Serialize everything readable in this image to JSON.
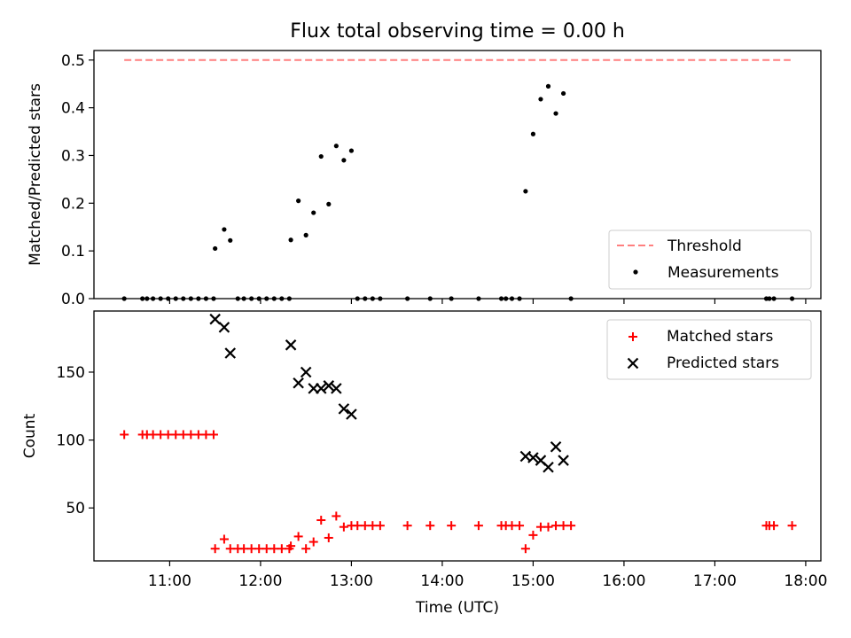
{
  "chart_data": [
    {
      "type": "scatter",
      "title": "Flux total observing time = 0.00 h",
      "xlabel": "",
      "ylabel": "Matched/Predicted stars",
      "xlim": [
        "10:10",
        "18:10"
      ],
      "ylim": [
        0,
        0.52
      ],
      "x_ticks": [
        "11:00",
        "12:00",
        "13:00",
        "14:00",
        "15:00",
        "16:00",
        "17:00",
        "18:00"
      ],
      "y_ticks": [
        "0.0",
        "0.1",
        "0.2",
        "0.3",
        "0.4",
        "0.5"
      ],
      "y_tick_values": [
        0,
        0.1,
        0.2,
        0.3,
        0.4,
        0.5
      ],
      "legend_position": "lower-right",
      "threshold": {
        "name": "Threshold",
        "value": 0.5,
        "x_start": "10:30",
        "x_end": "17:50",
        "color": "#ff7f7f",
        "style": "dashed"
      },
      "series": [
        {
          "name": "Measurements",
          "color": "#000000",
          "marker": "dot",
          "points": [
            [
              "10:30",
              0.0
            ],
            [
              "10:42",
              0.0
            ],
            [
              "10:45",
              0.0
            ],
            [
              "10:49",
              0.0
            ],
            [
              "10:54",
              0.0
            ],
            [
              "10:59",
              0.0
            ],
            [
              "11:04",
              0.0
            ],
            [
              "11:09",
              0.0
            ],
            [
              "11:14",
              0.0
            ],
            [
              "11:19",
              0.0
            ],
            [
              "11:24",
              0.0
            ],
            [
              "11:29",
              0.0
            ],
            [
              "11:30",
              0.105
            ],
            [
              "11:36",
              0.145
            ],
            [
              "11:40",
              0.122
            ],
            [
              "11:45",
              0.0
            ],
            [
              "11:49",
              0.0
            ],
            [
              "11:54",
              0.0
            ],
            [
              "11:59",
              0.0
            ],
            [
              "12:04",
              0.0
            ],
            [
              "12:09",
              0.0
            ],
            [
              "12:14",
              0.0
            ],
            [
              "12:19",
              0.0
            ],
            [
              "12:20",
              0.123
            ],
            [
              "12:25",
              0.205
            ],
            [
              "12:30",
              0.133
            ],
            [
              "12:35",
              0.18
            ],
            [
              "12:40",
              0.298
            ],
            [
              "12:45",
              0.198
            ],
            [
              "12:50",
              0.32
            ],
            [
              "12:55",
              0.29
            ],
            [
              "13:00",
              0.31
            ],
            [
              "13:04",
              0.0
            ],
            [
              "13:09",
              0.0
            ],
            [
              "13:14",
              0.0
            ],
            [
              "13:19",
              0.0
            ],
            [
              "13:37",
              0.0
            ],
            [
              "13:52",
              0.0
            ],
            [
              "14:06",
              0.0
            ],
            [
              "14:24",
              0.0
            ],
            [
              "14:39",
              0.0
            ],
            [
              "14:42",
              0.0
            ],
            [
              "14:46",
              0.0
            ],
            [
              "14:51",
              0.0
            ],
            [
              "14:55",
              0.225
            ],
            [
              "15:00",
              0.345
            ],
            [
              "15:05",
              0.418
            ],
            [
              "15:10",
              0.445
            ],
            [
              "15:15",
              0.388
            ],
            [
              "15:20",
              0.43
            ],
            [
              "15:25",
              0.0
            ],
            [
              "17:34",
              0.0
            ],
            [
              "17:36",
              0.0
            ],
            [
              "17:39",
              0.0
            ],
            [
              "17:51",
              0.0
            ]
          ]
        }
      ]
    },
    {
      "type": "scatter",
      "title": "",
      "xlabel": "Time (UTC)",
      "ylabel": "Count",
      "xlim": [
        "10:10",
        "18:10"
      ],
      "ylim": [
        11,
        195
      ],
      "x_ticks": [
        "11:00",
        "12:00",
        "13:00",
        "14:00",
        "15:00",
        "16:00",
        "17:00",
        "18:00"
      ],
      "y_ticks": [
        "50",
        "100",
        "150"
      ],
      "y_tick_values": [
        50,
        100,
        150
      ],
      "legend_position": "upper-right",
      "series": [
        {
          "name": "Matched stars",
          "color": "#ff0000",
          "marker": "plus",
          "points": [
            [
              "10:30",
              104
            ],
            [
              "10:42",
              104
            ],
            [
              "10:45",
              104
            ],
            [
              "10:49",
              104
            ],
            [
              "10:54",
              104
            ],
            [
              "10:59",
              104
            ],
            [
              "11:04",
              104
            ],
            [
              "11:09",
              104
            ],
            [
              "11:14",
              104
            ],
            [
              "11:19",
              104
            ],
            [
              "11:24",
              104
            ],
            [
              "11:29",
              104
            ],
            [
              "11:30",
              20
            ],
            [
              "11:36",
              27
            ],
            [
              "11:40",
              20
            ],
            [
              "11:45",
              20
            ],
            [
              "11:49",
              20
            ],
            [
              "11:54",
              20
            ],
            [
              "11:59",
              20
            ],
            [
              "12:04",
              20
            ],
            [
              "12:09",
              20
            ],
            [
              "12:14",
              20
            ],
            [
              "12:19",
              20
            ],
            [
              "12:20",
              22
            ],
            [
              "12:25",
              29
            ],
            [
              "12:30",
              20
            ],
            [
              "12:35",
              25
            ],
            [
              "12:40",
              41
            ],
            [
              "12:45",
              28
            ],
            [
              "12:50",
              44
            ],
            [
              "12:55",
              36
            ],
            [
              "13:00",
              37
            ],
            [
              "13:04",
              37
            ],
            [
              "13:09",
              37
            ],
            [
              "13:14",
              37
            ],
            [
              "13:19",
              37
            ],
            [
              "13:37",
              37
            ],
            [
              "13:52",
              37
            ],
            [
              "14:06",
              37
            ],
            [
              "14:24",
              37
            ],
            [
              "14:39",
              37
            ],
            [
              "14:42",
              37
            ],
            [
              "14:46",
              37
            ],
            [
              "14:51",
              37
            ],
            [
              "14:55",
              20
            ],
            [
              "15:00",
              30
            ],
            [
              "15:05",
              36
            ],
            [
              "15:10",
              36
            ],
            [
              "15:15",
              37
            ],
            [
              "15:20",
              37
            ],
            [
              "15:25",
              37
            ],
            [
              "17:34",
              37
            ],
            [
              "17:36",
              37
            ],
            [
              "17:39",
              37
            ],
            [
              "17:51",
              37
            ]
          ]
        },
        {
          "name": "Predicted stars",
          "color": "#000000",
          "marker": "x",
          "points": [
            [
              "11:30",
              189
            ],
            [
              "11:36",
              183
            ],
            [
              "11:40",
              164
            ],
            [
              "12:20",
              170
            ],
            [
              "12:25",
              142
            ],
            [
              "12:30",
              150
            ],
            [
              "12:35",
              138
            ],
            [
              "12:40",
              138
            ],
            [
              "12:45",
              140
            ],
            [
              "12:50",
              138
            ],
            [
              "12:55",
              123
            ],
            [
              "13:00",
              119
            ],
            [
              "14:55",
              88
            ],
            [
              "15:00",
              87
            ],
            [
              "15:05",
              85
            ],
            [
              "15:10",
              80
            ],
            [
              "15:15",
              95
            ],
            [
              "15:20",
              85
            ]
          ]
        }
      ]
    }
  ]
}
